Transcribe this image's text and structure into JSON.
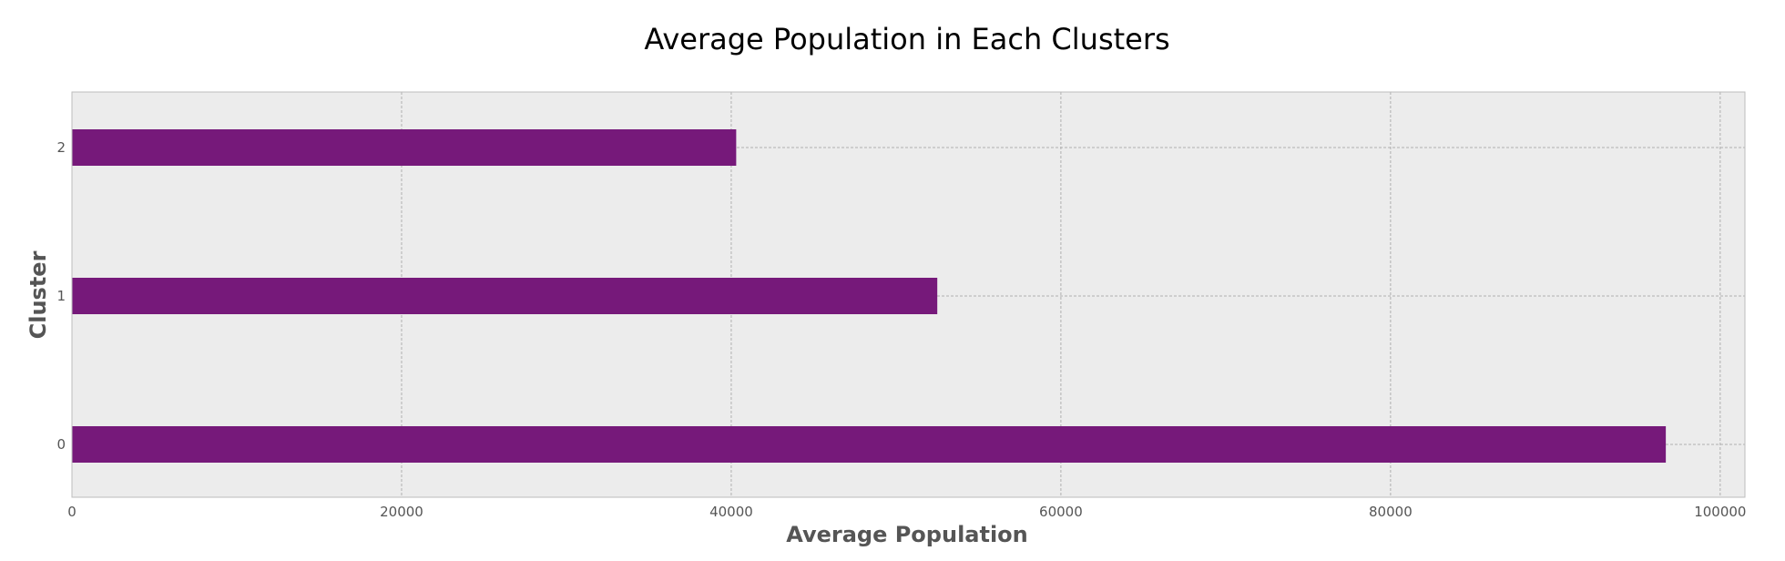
{
  "chart_data": {
    "type": "bar",
    "orientation": "horizontal",
    "title": "Average Population in Each Clusters",
    "xlabel": "Average Population",
    "ylabel": "Cluster",
    "categories": [
      "0",
      "1",
      "2"
    ],
    "values": [
      96700,
      52500,
      40300
    ],
    "xlim": [
      0,
      101500
    ],
    "x_ticks": [
      0,
      20000,
      40000,
      60000,
      80000,
      100000
    ],
    "x_tick_labels": [
      "0",
      "20000",
      "40000",
      "60000",
      "80000",
      "100000"
    ],
    "grid": true,
    "bar_color": "#76197a",
    "plot_background": "#ececec",
    "frame_color": "#bdbdbd"
  }
}
